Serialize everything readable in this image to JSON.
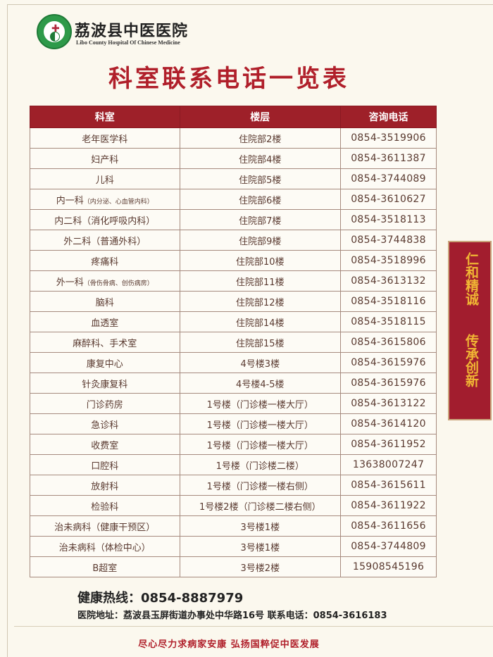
{
  "header": {
    "hospital_name": "荔波县中医医院",
    "hospital_name_en": "Libo County Hospital Of Chinese Medicine",
    "title": "科室联系电话一览表"
  },
  "colors": {
    "accent": "#9e2029",
    "title": "#b01f2a",
    "banner_text": "#f0b634"
  },
  "table": {
    "columns": [
      "科室",
      "楼层",
      "咨询电话"
    ],
    "rows": [
      {
        "dept": "老年医学科",
        "sub": "",
        "floor": "住院部2楼",
        "phone": "0854-3519906"
      },
      {
        "dept": "妇产科",
        "sub": "",
        "floor": "住院部4楼",
        "phone": "0854-3611387"
      },
      {
        "dept": "儿科",
        "sub": "",
        "floor": "住院部5楼",
        "phone": "0854-3744089"
      },
      {
        "dept": "内一科",
        "sub": "（内分泌、心血管内科）",
        "floor": "住院部6楼",
        "phone": "0854-3610627"
      },
      {
        "dept": "内二科（消化呼吸内科）",
        "sub": "",
        "floor": "住院部7楼",
        "phone": "0854-3518113"
      },
      {
        "dept": "外二科（普通外科）",
        "sub": "",
        "floor": "住院部9楼",
        "phone": "0854-3744838"
      },
      {
        "dept": "疼痛科",
        "sub": "",
        "floor": "住院部10楼",
        "phone": "0854-3518996"
      },
      {
        "dept": "外一科",
        "sub": "（骨伤骨病、创伤病房）",
        "floor": "住院部11楼",
        "phone": "0854-3613132"
      },
      {
        "dept": "脑科",
        "sub": "",
        "floor": "住院部12楼",
        "phone": "0854-3518116"
      },
      {
        "dept": "血透室",
        "sub": "",
        "floor": "住院部14楼",
        "phone": "0854-3518115"
      },
      {
        "dept": "麻醉科、手术室",
        "sub": "",
        "floor": "住院部15楼",
        "phone": "0854-3615806"
      },
      {
        "dept": "康复中心",
        "sub": "",
        "floor": "4号楼3楼",
        "phone": "0854-3615976"
      },
      {
        "dept": "针灸康复科",
        "sub": "",
        "floor": "4号楼4-5楼",
        "phone": "0854-3615976"
      },
      {
        "dept": "门诊药房",
        "sub": "",
        "floor": "1号楼（门诊楼一楼大厅）",
        "phone": "0854-3613122"
      },
      {
        "dept": "急诊科",
        "sub": "",
        "floor": "1号楼（门诊楼一楼大厅）",
        "phone": "0854-3614120"
      },
      {
        "dept": "收费室",
        "sub": "",
        "floor": "1号楼（门诊楼一楼大厅）",
        "phone": "0854-3611952"
      },
      {
        "dept": "口腔科",
        "sub": "",
        "floor": "1号楼（门诊楼二楼）",
        "phone": "13638007247"
      },
      {
        "dept": "放射科",
        "sub": "",
        "floor": "1号楼（门诊楼一楼右侧）",
        "phone": "0854-3615611"
      },
      {
        "dept": "检验科",
        "sub": "",
        "floor": "1号楼2楼（门诊楼二楼右侧）",
        "phone": "0854-3611922"
      },
      {
        "dept": "治未病科（健康干预区）",
        "sub": "",
        "floor": "3号楼1楼",
        "phone": "0854-3611656"
      },
      {
        "dept": "治未病科（体检中心）",
        "sub": "",
        "floor": "3号楼1楼",
        "phone": "0854-3744809"
      },
      {
        "dept": "B超室",
        "sub": "",
        "floor": "3号楼2楼",
        "phone": "15908545196"
      }
    ]
  },
  "banner": {
    "line1": "仁和精诚",
    "line2": "传承创新"
  },
  "footer": {
    "hotline": "健康热线：0854-8887979",
    "address": "医院地址：荔波县玉屏街道办事处中华路16号  联系电话：0854-3616183",
    "slogan": "尽心尽力求病家安康   弘扬国粹促中医发展"
  }
}
